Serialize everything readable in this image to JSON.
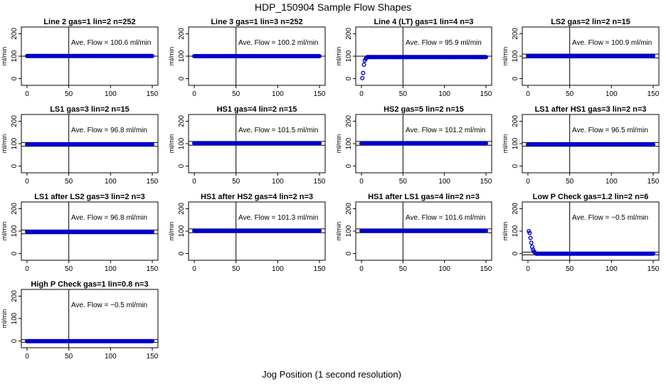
{
  "figure": {
    "title": "HDP_150904  Sample Flow Shapes",
    "xlabel": "Jog Position (1 second resolution)"
  },
  "colors": {
    "points": "#0000cc",
    "axes": "#000000",
    "background": "#ffffff"
  },
  "chart_data": [
    {
      "type": "scatter",
      "title": "Line 2 gas=1 lin=2 n=252",
      "ylabel": "ml/min",
      "annotation": "Ave. Flow =  100.6  ml/min",
      "xlim": [
        0,
        150
      ],
      "ylim": [
        0,
        200
      ],
      "xticks": [
        0,
        50,
        100,
        150
      ],
      "yticks": [
        0,
        100,
        200
      ],
      "vline_x": 50,
      "hlines_y": [
        100
      ],
      "grid": false,
      "series": [
        {
          "shape": "flat",
          "level": 100.6
        }
      ]
    },
    {
      "type": "scatter",
      "title": "Line 3 gas=1 lin=3 n=252",
      "ylabel": "ml/min",
      "annotation": "Ave. Flow =  100.2  ml/min",
      "xlim": [
        0,
        150
      ],
      "ylim": [
        0,
        200
      ],
      "xticks": [
        0,
        50,
        100,
        150
      ],
      "yticks": [
        0,
        100,
        200
      ],
      "vline_x": 50,
      "hlines_y": [
        100
      ],
      "grid": false,
      "series": [
        {
          "shape": "flat",
          "level": 100.2
        }
      ]
    },
    {
      "type": "scatter",
      "title": "Line 4 (LT) gas=1 lin=4 n=3",
      "ylabel": "ml/min",
      "annotation": "Ave. Flow =  95.9  ml/min",
      "xlim": [
        0,
        150
      ],
      "ylim": [
        0,
        200
      ],
      "xticks": [
        0,
        50,
        100,
        150
      ],
      "yticks": [
        0,
        100,
        200
      ],
      "vline_x": 50,
      "hlines_y": [
        100
      ],
      "grid": false,
      "series": [
        {
          "shape": "rise",
          "level": 95.9,
          "start_points": [
            [
              1,
              2
            ],
            [
              2,
              25
            ],
            [
              3,
              62
            ],
            [
              4,
              80
            ],
            [
              5,
              88
            ],
            [
              6,
              92
            ]
          ]
        }
      ]
    },
    {
      "type": "scatter",
      "title": "LS2 gas=2 lin=2 n=15",
      "ylabel": "ml/min",
      "annotation": "Ave. Flow =  100.9  ml/min",
      "xlim": [
        0,
        150
      ],
      "ylim": [
        0,
        200
      ],
      "xticks": [
        0,
        50,
        100,
        150
      ],
      "yticks": [
        0,
        100,
        200
      ],
      "vline_x": 50,
      "hlines_y": [
        92,
        109
      ],
      "grid": false,
      "series": [
        {
          "shape": "flat",
          "level": 100.9
        }
      ]
    },
    {
      "type": "scatter",
      "title": "LS1 gas=3 lin=2 n=15",
      "ylabel": "ml/min",
      "annotation": "Ave. Flow =  96.8  ml/min",
      "xlim": [
        0,
        150
      ],
      "ylim": [
        0,
        200
      ],
      "xticks": [
        0,
        50,
        100,
        150
      ],
      "yticks": [
        0,
        100,
        200
      ],
      "vline_x": 50,
      "hlines_y": [
        88,
        105
      ],
      "grid": false,
      "series": [
        {
          "shape": "flat",
          "level": 96.8
        }
      ]
    },
    {
      "type": "scatter",
      "title": "HS1 gas=4 lin=2 n=15",
      "ylabel": "ml/min",
      "annotation": "Ave. Flow =  101.5  ml/min",
      "xlim": [
        0,
        150
      ],
      "ylim": [
        0,
        200
      ],
      "xticks": [
        0,
        50,
        100,
        150
      ],
      "yticks": [
        0,
        100,
        200
      ],
      "vline_x": 50,
      "hlines_y": [
        93,
        110
      ],
      "grid": false,
      "series": [
        {
          "shape": "flat",
          "level": 101.5
        }
      ]
    },
    {
      "type": "scatter",
      "title": "HS2 gas=5 lin=2 n=15",
      "ylabel": "ml/min",
      "annotation": "Ave. Flow =  101.2  ml/min",
      "xlim": [
        0,
        150
      ],
      "ylim": [
        0,
        200
      ],
      "xticks": [
        0,
        50,
        100,
        150
      ],
      "yticks": [
        0,
        100,
        200
      ],
      "vline_x": 50,
      "hlines_y": [
        93,
        110
      ],
      "grid": false,
      "series": [
        {
          "shape": "flat",
          "level": 101.2
        }
      ]
    },
    {
      "type": "scatter",
      "title": "LS1 after HS1 gas=3 lin=2 n=3",
      "ylabel": "ml/min",
      "annotation": "Ave. Flow =  96.5  ml/min",
      "xlim": [
        0,
        150
      ],
      "ylim": [
        0,
        200
      ],
      "xticks": [
        0,
        50,
        100,
        150
      ],
      "yticks": [
        0,
        100,
        200
      ],
      "vline_x": 50,
      "hlines_y": [
        88,
        105
      ],
      "grid": false,
      "series": [
        {
          "shape": "flat",
          "level": 96.5
        }
      ]
    },
    {
      "type": "scatter",
      "title": "LS1 after LS2 gas=3 lin=2 n=3",
      "ylabel": "ml/min",
      "annotation": "Ave. Flow =  96.8  ml/min",
      "xlim": [
        0,
        150
      ],
      "ylim": [
        0,
        200
      ],
      "xticks": [
        0,
        50,
        100,
        150
      ],
      "yticks": [
        0,
        100,
        200
      ],
      "vline_x": 50,
      "hlines_y": [
        88,
        105
      ],
      "grid": false,
      "series": [
        {
          "shape": "flat",
          "level": 96.8
        }
      ]
    },
    {
      "type": "scatter",
      "title": "HS1 after HS2 gas=4 lin=2 n=3",
      "ylabel": "ml/min",
      "annotation": "Ave. Flow =  101.3  ml/min",
      "xlim": [
        0,
        150
      ],
      "ylim": [
        0,
        200
      ],
      "xticks": [
        0,
        50,
        100,
        150
      ],
      "yticks": [
        0,
        100,
        200
      ],
      "vline_x": 50,
      "hlines_y": [
        93,
        110
      ],
      "grid": false,
      "series": [
        {
          "shape": "flat",
          "level": 101.3
        }
      ]
    },
    {
      "type": "scatter",
      "title": "HS1 after LS1 gas=4 lin=2 n=3",
      "ylabel": "ml/min",
      "annotation": "Ave. Flow =  101.6  ml/min",
      "xlim": [
        0,
        150
      ],
      "ylim": [
        0,
        200
      ],
      "xticks": [
        0,
        50,
        100,
        150
      ],
      "yticks": [
        0,
        100,
        200
      ],
      "vline_x": 50,
      "hlines_y": [
        93,
        110
      ],
      "grid": false,
      "series": [
        {
          "shape": "flat",
          "level": 101.6
        }
      ]
    },
    {
      "type": "scatter",
      "title": "Low P Check gas=1.2 lin=2 n=6",
      "ylabel": "ml/min",
      "annotation": "Ave. Flow =  −0.5  ml/min",
      "xlim": [
        0,
        150
      ],
      "ylim": [
        0,
        200
      ],
      "xticks": [
        0,
        50,
        100,
        150
      ],
      "yticks": [
        0,
        100,
        200
      ],
      "vline_x": 50,
      "hlines_y": [
        -6,
        6
      ],
      "grid": false,
      "series": [
        {
          "shape": "decay",
          "level": -0.5,
          "start_points": [
            [
              1,
              100
            ],
            [
              2,
              92
            ],
            [
              3,
              70
            ],
            [
              4,
              48
            ],
            [
              5,
              30
            ],
            [
              6,
              18
            ],
            [
              7,
              10
            ],
            [
              8,
              5
            ],
            [
              9,
              2
            ]
          ]
        }
      ]
    },
    {
      "type": "scatter",
      "title": "High P Check gas=1 lin=0.8 n=3",
      "ylabel": "ml/min",
      "annotation": "Ave. Flow =  −0.5  ml/min",
      "xlim": [
        0,
        150
      ],
      "ylim": [
        0,
        200
      ],
      "xticks": [
        0,
        50,
        100,
        150
      ],
      "yticks": [
        0,
        100,
        200
      ],
      "vline_x": 50,
      "hlines_y": [
        -6,
        6
      ],
      "grid": false,
      "series": [
        {
          "shape": "flat",
          "level": -0.5
        }
      ]
    }
  ]
}
